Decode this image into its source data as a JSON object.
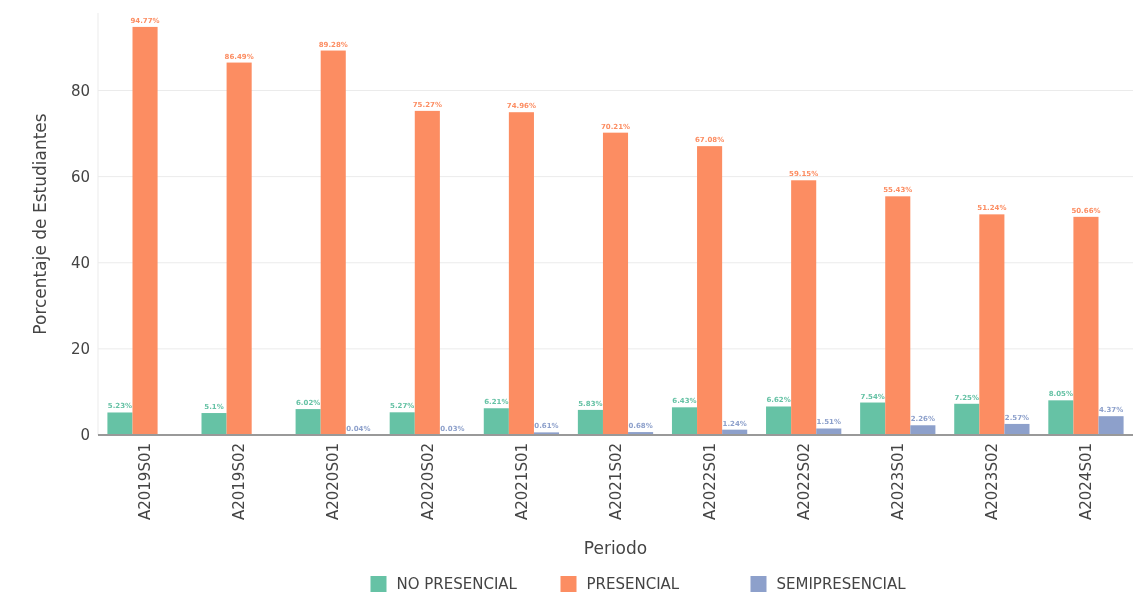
{
  "chart_data": {
    "type": "bar",
    "xlabel": "Periodo",
    "ylabel": "Porcentaje de Estudiantes",
    "categories": [
      "A2019S01",
      "A2019S02",
      "A2020S01",
      "A2020S02",
      "A2021S01",
      "A2021S02",
      "A2022S01",
      "A2022S02",
      "A2023S01",
      "A2023S02",
      "A2024S01"
    ],
    "series": [
      {
        "name": "NO PRESENCIAL",
        "color": "#66c2a5",
        "values": [
          5.23,
          5.1,
          6.02,
          5.27,
          6.21,
          5.83,
          6.43,
          6.62,
          7.54,
          7.25,
          8.05
        ],
        "value_labels": [
          "5.23%",
          "5.1%",
          "6.02%",
          "5.27%",
          "6.21%",
          "5.83%",
          "6.43%",
          "6.62%",
          "7.54%",
          "7.25%",
          "8.05%"
        ]
      },
      {
        "name": "PRESENCIAL",
        "color": "#fc8d62",
        "values": [
          94.77,
          86.49,
          89.28,
          75.27,
          74.96,
          70.21,
          67.08,
          59.15,
          55.43,
          51.24,
          50.66
        ],
        "value_labels": [
          "94.77%",
          "86.49%",
          "89.28%",
          "75.27%",
          "74.96%",
          "70.21%",
          "67.08%",
          "59.15%",
          "55.43%",
          "51.24%",
          "50.66%"
        ]
      },
      {
        "name": "SEMIPRESENCIAL",
        "color": "#8da0cb",
        "values": [
          null,
          null,
          0.04,
          0.03,
          0.61,
          0.68,
          1.24,
          1.51,
          2.26,
          2.57,
          4.37
        ],
        "value_labels": [
          null,
          null,
          "0.04%",
          "0.03%",
          "0.61%",
          "0.68%",
          "1.24%",
          "1.51%",
          "2.26%",
          "2.57%",
          "4.37%"
        ]
      }
    ],
    "ylim": [
      0,
      98
    ],
    "yticks": [
      0,
      20,
      40,
      60,
      80
    ],
    "grid": "y",
    "legend": "bottom"
  }
}
